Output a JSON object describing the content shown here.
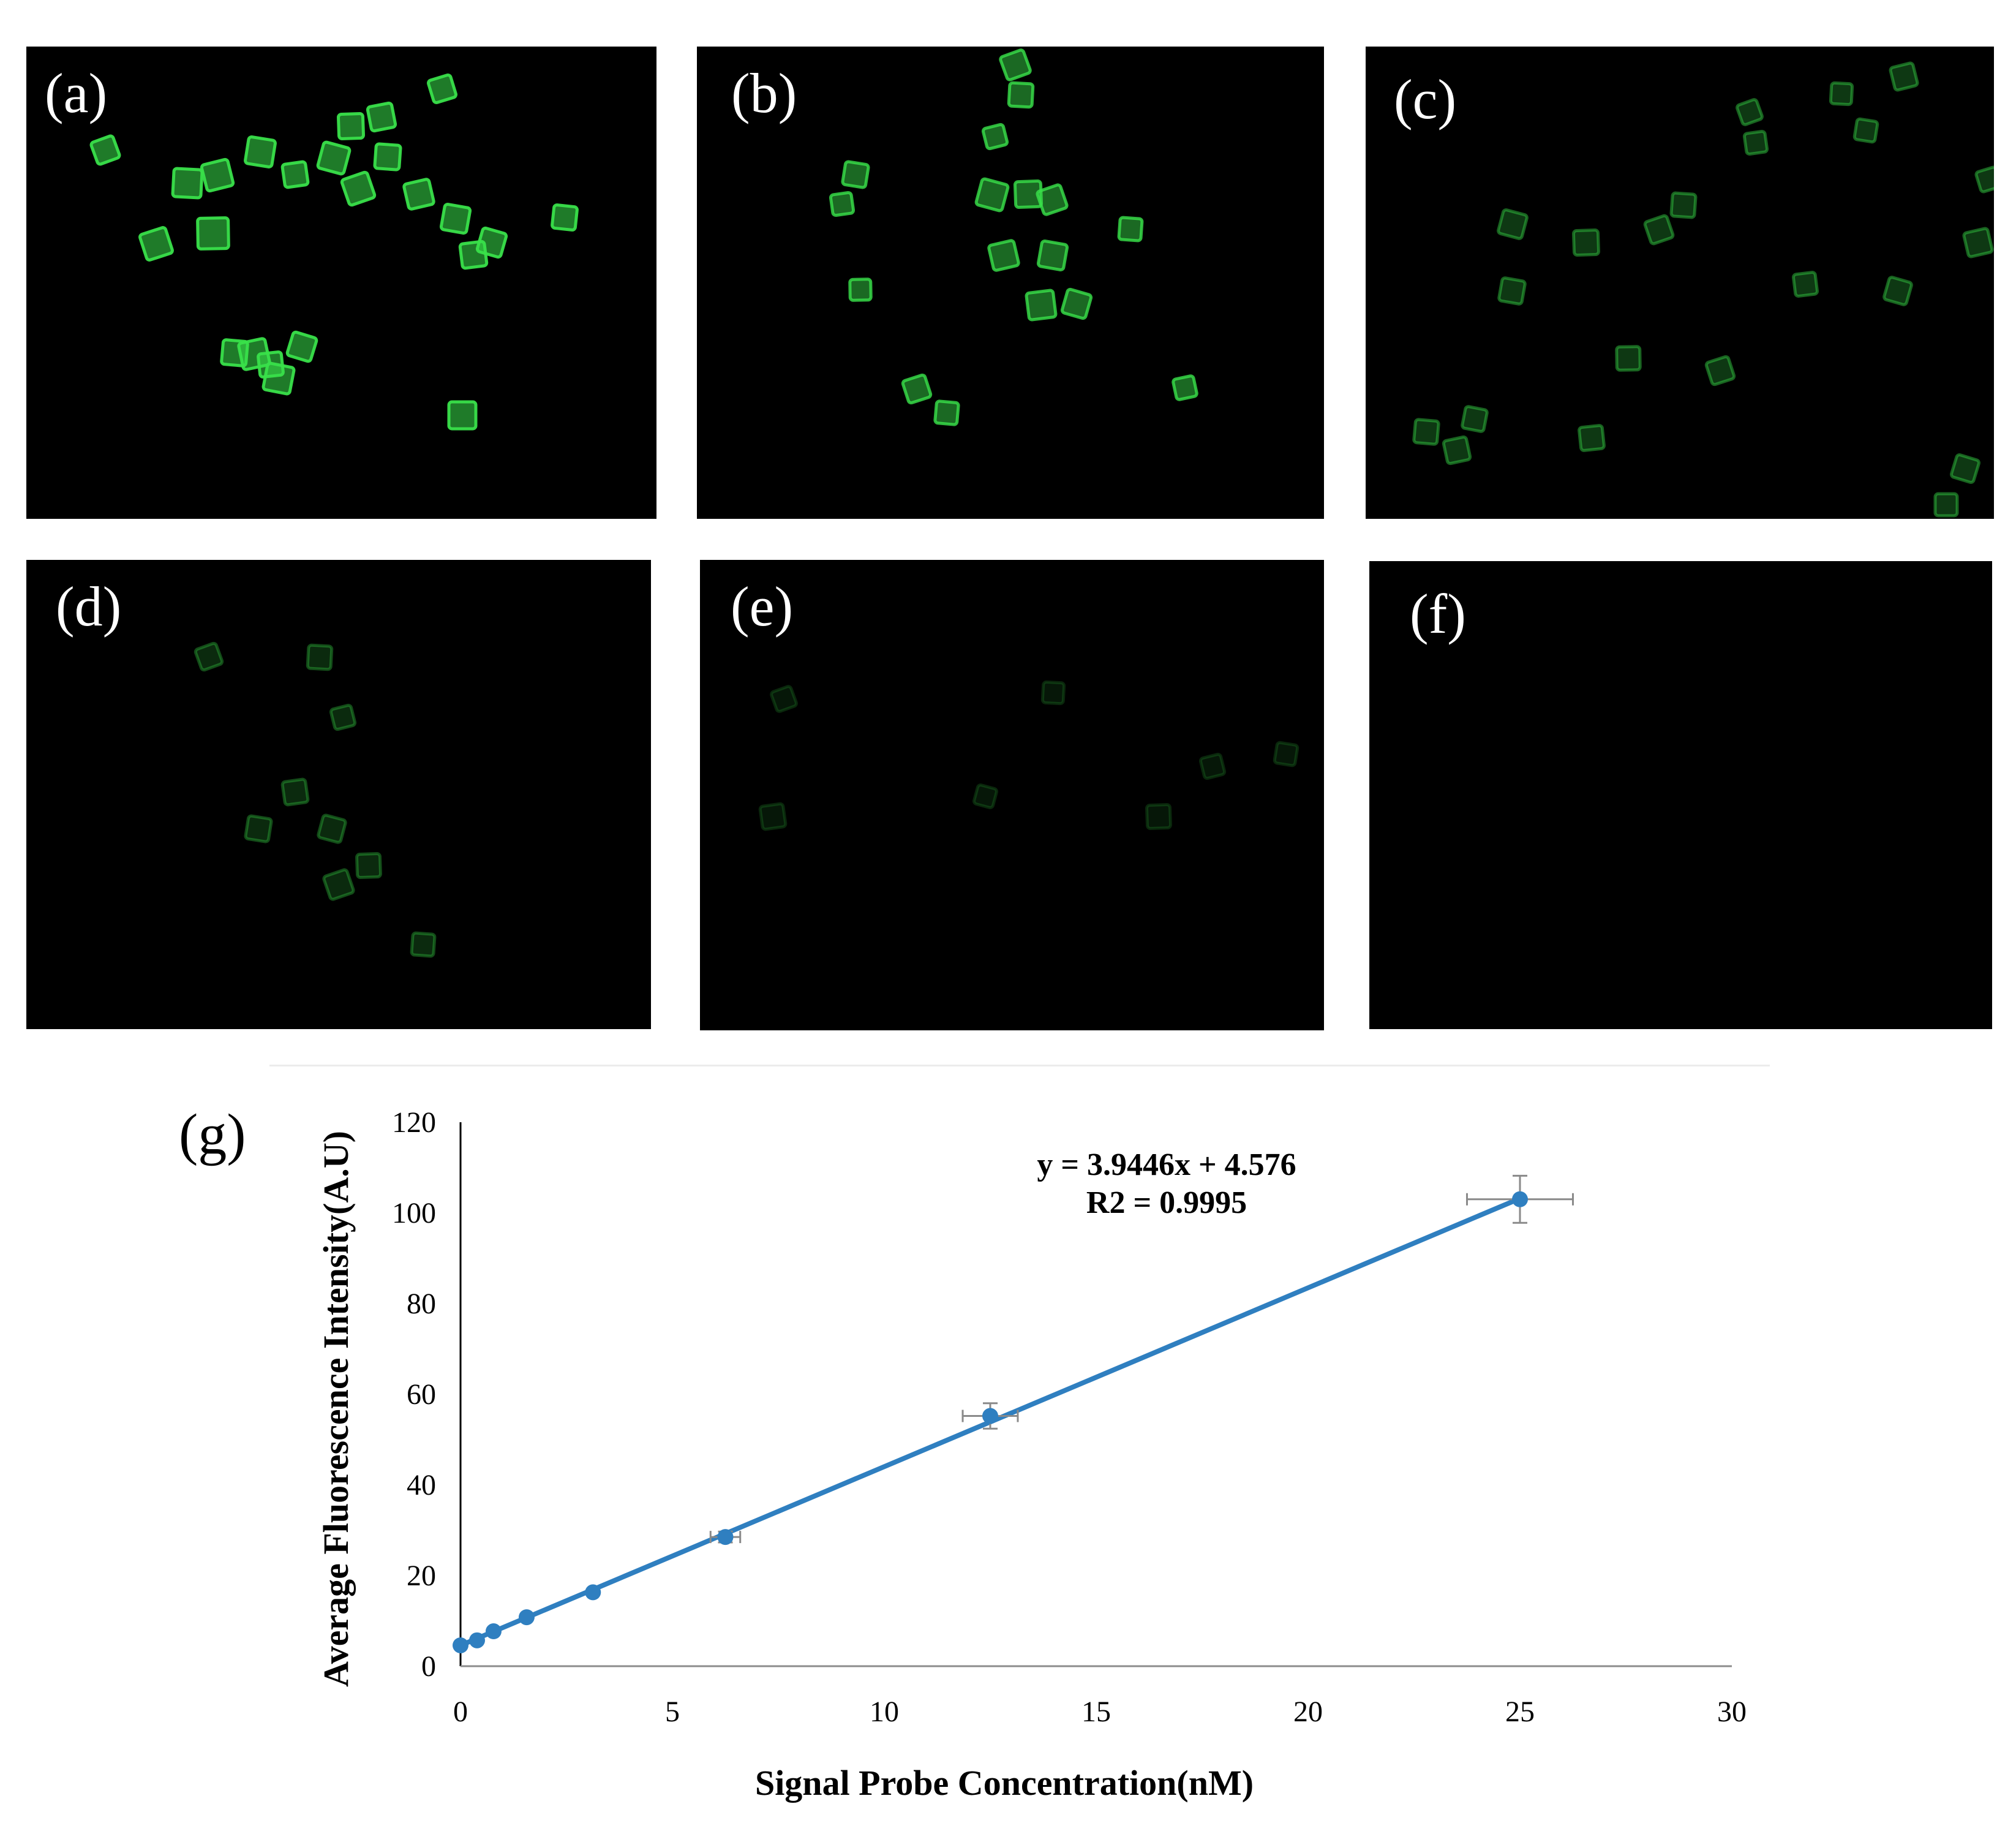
{
  "panels": [
    {
      "label": "(a)",
      "brightness": 1.0
    },
    {
      "label": "(b)",
      "brightness": 0.85
    },
    {
      "label": "(c)",
      "brightness": 0.45
    },
    {
      "label": "(d)",
      "brightness": 0.35
    },
    {
      "label": "(e)",
      "brightness": 0.18
    },
    {
      "label": "(f)",
      "brightness": 0.0
    }
  ],
  "colors": {
    "fluorescence": "#39e04a",
    "line": "#2f7fc0",
    "marker": "#2f7fc0",
    "errorbar": "#8a8a8a"
  },
  "chart_label": "(g)",
  "chart_data": {
    "type": "scatter",
    "xlabel": "Signal Probe Concentration(nM)",
    "ylabel": "Average Fluorescence Intensity(A.U)",
    "xlim": [
      0,
      30
    ],
    "ylim": [
      0,
      120
    ],
    "xticks": [
      0,
      5,
      10,
      15,
      20,
      25,
      30
    ],
    "yticks": [
      0,
      20,
      40,
      60,
      80,
      100,
      120
    ],
    "grid": false,
    "series": [
      {
        "x": [
          0,
          0.39,
          0.78,
          1.56,
          3.125,
          6.25,
          12.5,
          25
        ],
        "y": [
          4.6,
          5.7,
          7.7,
          10.8,
          16.3,
          28.5,
          55.2,
          103
        ],
        "xerr": [
          0,
          0,
          0,
          0,
          0,
          0.35,
          0.65,
          1.25
        ],
        "yerr": [
          0,
          0,
          0,
          0,
          0,
          1.2,
          2.8,
          5.2
        ]
      }
    ],
    "trendline": {
      "slope": 3.9446,
      "intercept": 4.576
    },
    "annotations": [
      "y = 3.9446x + 4.576",
      "R2 = 0.9995"
    ]
  }
}
